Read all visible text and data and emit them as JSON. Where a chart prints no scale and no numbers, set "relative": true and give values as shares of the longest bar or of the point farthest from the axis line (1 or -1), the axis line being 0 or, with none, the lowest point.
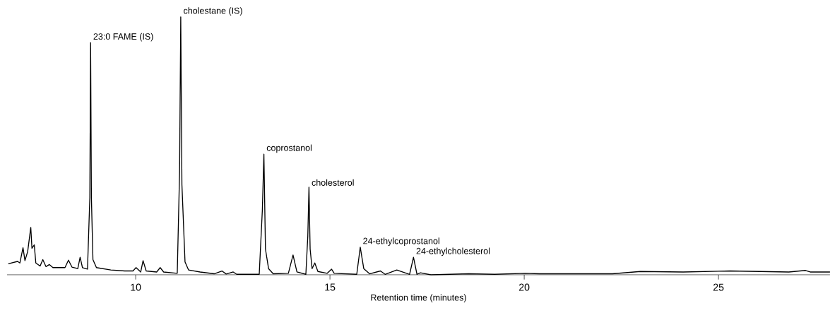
{
  "chart_data": {
    "type": "line",
    "relative": true,
    "xlabel": "Retention time (minutes)",
    "xlim": [
      6.69,
      27.87
    ],
    "xticks": [
      10,
      15,
      20,
      25
    ],
    "series": [
      {
        "color": "#000000",
        "x": [
          6.72,
          6.96,
          7.02,
          7.1,
          7.15,
          7.22,
          7.3,
          7.33,
          7.39,
          7.43,
          7.54,
          7.61,
          7.69,
          7.78,
          7.87,
          8.18,
          8.27,
          8.36,
          8.51,
          8.57,
          8.63,
          8.76,
          8.82,
          8.84,
          8.86,
          8.9,
          8.99,
          9.36,
          9.72,
          9.93,
          10.01,
          10.13,
          10.19,
          10.27,
          10.54,
          10.63,
          10.72,
          11.07,
          11.13,
          11.16,
          11.19,
          11.27,
          11.36,
          11.66,
          12.02,
          12.22,
          12.33,
          12.51,
          12.6,
          13.18,
          13.26,
          13.3,
          13.34,
          13.42,
          13.54,
          13.93,
          14.05,
          14.15,
          14.38,
          14.43,
          14.46,
          14.49,
          14.54,
          14.61,
          14.69,
          14.93,
          15.04,
          15.11,
          15.69,
          15.78,
          15.87,
          16.02,
          16.3,
          16.42,
          16.72,
          17.05,
          17.15,
          17.24,
          17.33,
          17.6,
          18.57,
          19.24,
          20.02,
          20.39,
          22.27,
          22.99,
          24.09,
          25.3,
          26.81,
          27.24,
          27.36,
          27.87
        ],
        "values": [
          0.043,
          0.052,
          0.046,
          0.105,
          0.055,
          0.09,
          0.184,
          0.103,
          0.116,
          0.046,
          0.034,
          0.059,
          0.032,
          0.04,
          0.028,
          0.028,
          0.057,
          0.03,
          0.024,
          0.068,
          0.028,
          0.022,
          0.3,
          0.9,
          0.3,
          0.059,
          0.028,
          0.019,
          0.015,
          0.015,
          0.028,
          0.011,
          0.055,
          0.015,
          0.011,
          0.028,
          0.011,
          0.006,
          0.4,
          1.0,
          0.35,
          0.05,
          0.019,
          0.011,
          0.004,
          0.015,
          0.003,
          0.011,
          0.002,
          0.002,
          0.25,
          0.468,
          0.1,
          0.024,
          0.004,
          0.006,
          0.077,
          0.011,
          0.002,
          0.15,
          0.34,
          0.1,
          0.024,
          0.046,
          0.013,
          0.006,
          0.022,
          0.006,
          0.002,
          0.107,
          0.024,
          0.004,
          0.015,
          0.002,
          0.019,
          0.002,
          0.068,
          0.002,
          0.008,
          0,
          0.004,
          0.002,
          0.006,
          0.004,
          0.004,
          0.013,
          0.011,
          0.015,
          0.011,
          0.017,
          0.011,
          0.011
        ]
      }
    ],
    "annotations": [
      {
        "text": "23:0 FAME (IS)",
        "x": 8.84,
        "y": 0.9
      },
      {
        "text": "cholestane (IS)",
        "x": 11.16,
        "y": 1.0
      },
      {
        "text": "coprostanol",
        "x": 13.3,
        "y": 0.468
      },
      {
        "text": "cholesterol",
        "x": 14.46,
        "y": 0.34
      },
      {
        "text": "24-ethylcoprostanol",
        "x": 15.78,
        "y": 0.107
      },
      {
        "text": "24-ethylcholesterol",
        "x": 17.15,
        "y": 0.068
      }
    ]
  }
}
